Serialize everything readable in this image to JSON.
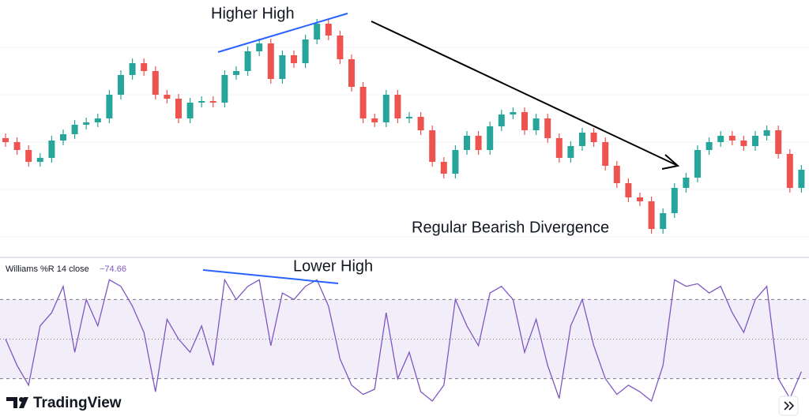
{
  "chart_data": [
    {
      "type": "candlestick",
      "up_color": "#26a69a",
      "down_color": "#ef5350",
      "ylim": [
        0,
        320
      ],
      "annotations": [
        "Higher High",
        "Regular Bearish Divergence"
      ],
      "open": [
        145,
        140,
        130,
        115,
        120,
        142,
        150,
        162,
        165,
        170,
        200,
        225,
        240,
        230,
        200,
        195,
        170,
        190,
        192,
        190,
        225,
        230,
        255,
        265,
        220,
        250,
        240,
        270,
        290,
        275,
        245,
        210,
        170,
        165,
        200,
        170,
        172,
        155,
        115,
        100,
        130,
        148,
        130,
        160,
        175,
        178,
        155,
        170,
        145,
        120,
        135,
        152,
        140,
        110,
        88,
        70,
        65,
        30,
        50,
        82,
        95,
        130,
        140,
        148,
        142,
        135,
        148,
        155,
        125,
        82
      ],
      "high": [
        151,
        146,
        136,
        126,
        148,
        156,
        168,
        171,
        176,
        206,
        231,
        246,
        246,
        236,
        206,
        201,
        196,
        198,
        198,
        231,
        236,
        261,
        271,
        271,
        256,
        256,
        276,
        296,
        296,
        281,
        251,
        216,
        176,
        206,
        206,
        178,
        178,
        161,
        121,
        136,
        154,
        154,
        166,
        181,
        184,
        184,
        176,
        176,
        151,
        141,
        158,
        158,
        146,
        116,
        94,
        76,
        71,
        56,
        88,
        101,
        136,
        146,
        154,
        154,
        148,
        154,
        161,
        161,
        131,
        111
      ],
      "low": [
        134,
        124,
        109,
        109,
        114,
        136,
        144,
        156,
        159,
        164,
        194,
        219,
        224,
        194,
        189,
        164,
        164,
        184,
        184,
        184,
        219,
        224,
        249,
        214,
        214,
        234,
        234,
        264,
        269,
        239,
        204,
        164,
        159,
        159,
        164,
        164,
        149,
        109,
        94,
        94,
        124,
        124,
        124,
        154,
        169,
        149,
        149,
        139,
        114,
        114,
        129,
        134,
        104,
        82,
        64,
        59,
        24,
        24,
        44,
        76,
        89,
        124,
        134,
        136,
        129,
        129,
        142,
        119,
        76,
        76
      ],
      "close": [
        140,
        130,
        115,
        120,
        142,
        150,
        162,
        165,
        170,
        200,
        225,
        240,
        230,
        200,
        195,
        170,
        190,
        192,
        190,
        225,
        230,
        255,
        265,
        220,
        250,
        240,
        270,
        290,
        275,
        245,
        210,
        170,
        165,
        200,
        170,
        172,
        155,
        115,
        100,
        130,
        148,
        130,
        160,
        175,
        178,
        155,
        170,
        145,
        120,
        135,
        152,
        140,
        110,
        88,
        70,
        65,
        30,
        50,
        82,
        95,
        130,
        140,
        148,
        142,
        135,
        148,
        155,
        125,
        82,
        105
      ]
    },
    {
      "type": "line",
      "name": "Williams %R 14 close",
      "last": {
        "value": -74.66,
        "label": "−74.66"
      },
      "color": "#7e57c2",
      "ylim": [
        -100,
        0
      ],
      "levels": [
        -20,
        -50,
        -80
      ],
      "band": [
        -80,
        -20
      ],
      "annotations": [
        "Lower High"
      ],
      "values": [
        -50,
        -70,
        -85,
        -40,
        -30,
        -10,
        -60,
        -20,
        -40,
        -5,
        -10,
        -25,
        -45,
        -90,
        -35,
        -50,
        -60,
        -40,
        -70,
        -5,
        -20,
        -10,
        -5,
        -55,
        -15,
        -20,
        -10,
        -5,
        -25,
        -65,
        -85,
        -92,
        -88,
        -30,
        -80,
        -60,
        -90,
        -97,
        -85,
        -20,
        -40,
        -55,
        -15,
        -10,
        -20,
        -60,
        -35,
        -70,
        -95,
        -40,
        -20,
        -55,
        -80,
        -92,
        -85,
        -90,
        -97,
        -70,
        -5,
        -10,
        -8,
        -15,
        -10,
        -30,
        -45,
        -20,
        -10,
        -80,
        -95,
        -74.66
      ]
    }
  ],
  "watermark": "TradingView"
}
